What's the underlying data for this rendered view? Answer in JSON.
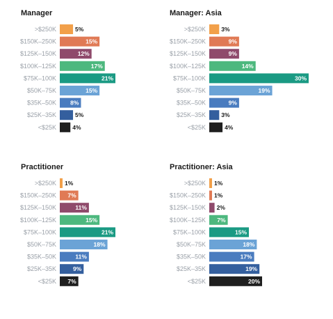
{
  "colors": {
    ">$250K": "#f2a04a",
    "$150K–250K": "#e07a55",
    "$125K–150K": "#8f4a6b",
    "$100K–125K": "#4db87e",
    "$75K–100K": "#1a9a83",
    "$50K–75K": "#6ba3d6",
    "$35K–50K": "#4a7cbf",
    "$25K–35K": "#345f9e",
    "<$25K": "#1f1f1f",
    "label": "#9aa0a8",
    "title": "#1a1a1a"
  },
  "chart_data": [
    {
      "type": "bar",
      "title": "Manager",
      "categories": [
        ">$250K",
        "$150K–250K",
        "$125K–150K",
        "$100K–125K",
        "$75K–100K",
        "$50K–75K",
        "$35K–50K",
        "$25K–35K",
        "<$25K"
      ],
      "values": [
        5,
        15,
        12,
        17,
        21,
        15,
        8,
        5,
        4
      ],
      "value_labels": [
        "5%",
        "15%",
        "12%",
        "17%",
        "21%",
        "15%",
        "8%",
        "5%",
        "4%"
      ],
      "unit": "%"
    },
    {
      "type": "bar",
      "title": "Manager: Asia",
      "categories": [
        ">$250K",
        "$150K–250K",
        "$125K–150K",
        "$100K–125K",
        "$75K–100K",
        "$50K–75K",
        "$35K–50K",
        "$25K–35K",
        "<$25K"
      ],
      "values": [
        3,
        9,
        9,
        14,
        30,
        19,
        9,
        3,
        4
      ],
      "value_labels": [
        "3%",
        "9%",
        "9%",
        "14%",
        "30%",
        "19%",
        "9%",
        "3%",
        "4%"
      ],
      "unit": "%"
    },
    {
      "type": "bar",
      "title": "Practitioner",
      "categories": [
        ">$250K",
        "$150K–250K",
        "$125K–150K",
        "$100K–125K",
        "$75K–100K",
        "$50K–75K",
        "$35K–50K",
        "$25K–35K",
        "<$25K"
      ],
      "values": [
        1,
        7,
        11,
        15,
        21,
        18,
        11,
        9,
        7
      ],
      "value_labels": [
        "1%",
        "7%",
        "11%",
        "15%",
        "21%",
        "18%",
        "11%",
        "9%",
        "7%"
      ],
      "unit": "%"
    },
    {
      "type": "bar",
      "title": "Practitioner: Asia",
      "categories": [
        ">$250K",
        "$150K–250K",
        "$125K–150K",
        "$100K–125K",
        "$75K–100K",
        "$50K–75K",
        "$35K–50K",
        "$25K–35K",
        "<$25K"
      ],
      "values": [
        1,
        1,
        2,
        7,
        15,
        18,
        17,
        19,
        20
      ],
      "value_labels": [
        "1%",
        "1%",
        "2%",
        "7%",
        "15%",
        "18%",
        "17%",
        "19%",
        "20%"
      ],
      "unit": "%"
    }
  ]
}
